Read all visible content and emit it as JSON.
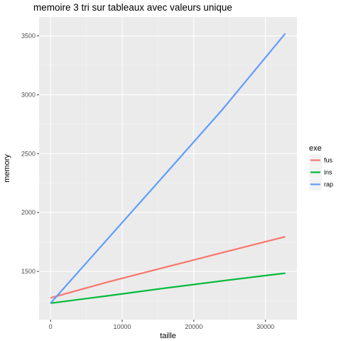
{
  "chart_data": {
    "type": "line",
    "title": "memoire 3 tri sur tableaux avec valeurs unique",
    "xlabel": "taille",
    "ylabel": "memory",
    "xlim": [
      -1600,
      34400
    ],
    "ylim": [
      1090,
      3660
    ],
    "x_ticks": [
      0,
      10000,
      20000,
      30000
    ],
    "y_ticks": [
      1500,
      2000,
      2500,
      3000,
      3500
    ],
    "x_minor_ticks": [
      5000,
      15000,
      25000
    ],
    "y_minor_ticks": [
      1250,
      1750,
      2250,
      2750,
      3250
    ],
    "grid": true,
    "legend": {
      "title": "exe",
      "placement": "right"
    },
    "series": [
      {
        "name": "fus",
        "color": "#F8766D",
        "points": [
          [
            0,
            1275
          ],
          [
            8000,
            1410
          ],
          [
            16000,
            1535
          ],
          [
            24000,
            1660
          ],
          [
            32768,
            1795
          ]
        ]
      },
      {
        "name": "ins",
        "color": "#00BA38",
        "points": [
          [
            0,
            1230
          ],
          [
            8000,
            1293
          ],
          [
            16000,
            1358
          ],
          [
            24000,
            1420
          ],
          [
            32768,
            1485
          ]
        ]
      },
      {
        "name": "rap",
        "color": "#619CFF",
        "points": [
          [
            0,
            1230
          ],
          [
            8000,
            1778
          ],
          [
            16000,
            2325
          ],
          [
            24000,
            2875
          ],
          [
            32768,
            3520
          ]
        ]
      }
    ]
  }
}
